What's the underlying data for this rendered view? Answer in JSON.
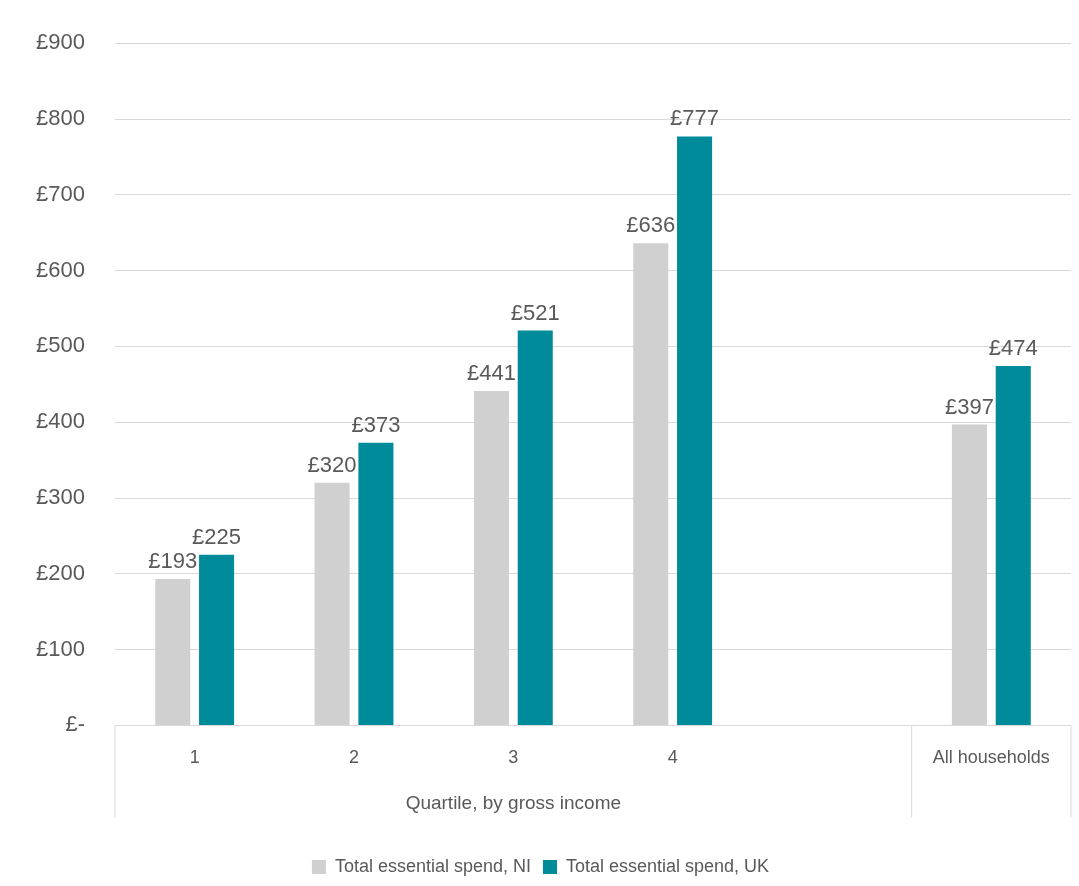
{
  "chart_data": {
    "type": "bar",
    "categories": [
      "1",
      "2",
      "3",
      "4",
      null,
      "All households"
    ],
    "series": [
      {
        "name": "Total essential spend, NI",
        "color": "#d0d0d0",
        "values": [
          193,
          320,
          441,
          636,
          null,
          397
        ],
        "value_labels": [
          "£193",
          "£320",
          "£441",
          "£636",
          null,
          "£397"
        ]
      },
      {
        "name": "Total essential spend, UK",
        "color": "#008b9a",
        "values": [
          225,
          373,
          521,
          777,
          null,
          474
        ],
        "value_labels": [
          "£225",
          "£373",
          "£521",
          "£777",
          null,
          "£474"
        ]
      }
    ],
    "ylim": [
      0,
      900
    ],
    "yticks": [
      {
        "value": 0,
        "label": "£-"
      },
      {
        "value": 100,
        "label": "£100"
      },
      {
        "value": 200,
        "label": "£200"
      },
      {
        "value": 300,
        "label": "£300"
      },
      {
        "value": 400,
        "label": "£400"
      },
      {
        "value": 500,
        "label": "£500"
      },
      {
        "value": 600,
        "label": "£600"
      },
      {
        "value": 700,
        "label": "£700"
      },
      {
        "value": 800,
        "label": "£800"
      },
      {
        "value": 900,
        "label": "£900"
      }
    ],
    "grid": "y",
    "legend": "bottom",
    "annotations": [
      "Quartile, by gross income"
    ]
  }
}
